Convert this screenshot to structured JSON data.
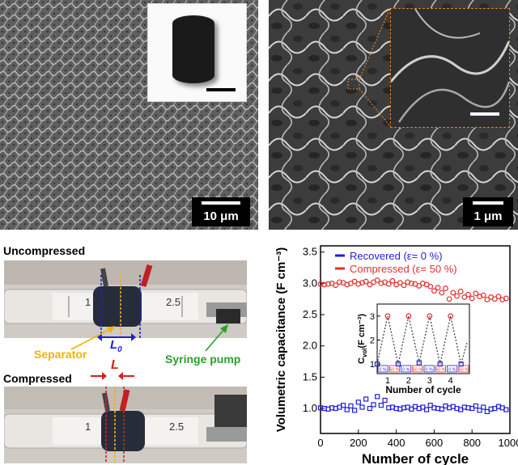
{
  "panel_a": {
    "scale_label": "10 μm",
    "inset_scale": ""
  },
  "panel_b": {
    "scale_label": "1 μm"
  },
  "panel_c": {
    "uncompressed_label": "Uncompressed",
    "compressed_label": "Compressed",
    "separator_label": "Separator",
    "syringe_label": "Syringe pump",
    "L0_label": "L",
    "L0_sub": "0",
    "L_label": "L",
    "syringe_marks": [
      "1",
      "2.5"
    ]
  },
  "colors": {
    "recovered": "#1f1fd6",
    "compressed": "#e03030",
    "separator": "#f0b400",
    "syringe": "#2aa02a"
  },
  "chart_data": {
    "type": "scatter",
    "xlabel": "Number of cycle",
    "ylabel": "Volumetric capacitance  (F cm⁻³)",
    "xlim": [
      0,
      1000
    ],
    "ylim": [
      0.6,
      3.6
    ],
    "xticks": [
      0,
      200,
      400,
      600,
      800,
      1000
    ],
    "yticks": [
      1.0,
      1.5,
      2.0,
      2.5,
      3.0,
      3.5
    ],
    "legend_position": "top",
    "series": [
      {
        "name": "Recovered (ε= 0 %)",
        "marker": "square",
        "x": [
          0,
          20,
          40,
          60,
          80,
          100,
          120,
          140,
          160,
          180,
          200,
          220,
          240,
          260,
          280,
          300,
          320,
          340,
          360,
          380,
          400,
          420,
          440,
          460,
          480,
          500,
          520,
          540,
          560,
          580,
          600,
          620,
          640,
          660,
          680,
          700,
          720,
          740,
          760,
          780,
          800,
          820,
          840,
          860,
          880,
          900,
          920,
          940,
          960,
          980
        ],
        "y": [
          1.01,
          1.0,
          0.99,
          1.01,
          1.0,
          1.02,
          1.05,
          0.98,
          1.04,
          0.97,
          1.1,
          1.02,
          1.15,
          1.0,
          1.06,
          1.19,
          1.05,
          1.13,
          1.01,
          1.02,
          1.0,
          0.99,
          1.01,
          1.02,
          0.99,
          1.03,
          1.0,
          1.02,
          0.98,
          1.05,
          1.01,
          1.0,
          0.99,
          1.04,
          1.01,
          1.03,
          1.0,
          0.98,
          1.02,
          1.01,
          1.0,
          1.04,
          0.97,
          1.02,
          0.95,
          0.99,
          1.0,
          1.03,
          1.01,
          0.98
        ]
      },
      {
        "name": "Compressed (ε= 50 %)",
        "marker": "circle",
        "x": [
          0,
          20,
          40,
          60,
          80,
          100,
          120,
          140,
          160,
          180,
          200,
          220,
          240,
          260,
          280,
          300,
          320,
          340,
          360,
          380,
          400,
          420,
          440,
          460,
          480,
          500,
          520,
          540,
          560,
          580,
          600,
          620,
          640,
          660,
          680,
          700,
          720,
          740,
          760,
          780,
          800,
          820,
          840,
          860,
          880,
          900,
          920,
          940,
          960,
          980
        ],
        "y": [
          2.99,
          2.98,
          2.99,
          3.0,
          2.97,
          3.02,
          3.01,
          2.98,
          3.0,
          3.03,
          2.99,
          3.01,
          3.03,
          2.98,
          3.02,
          3.05,
          3.0,
          3.02,
          2.99,
          3.04,
          2.98,
          3.01,
          2.97,
          3.02,
          3.0,
          2.99,
          2.96,
          3.0,
          2.98,
          2.95,
          2.88,
          2.93,
          2.85,
          2.92,
          2.75,
          2.85,
          2.8,
          2.87,
          2.78,
          2.82,
          2.76,
          2.84,
          2.79,
          2.81,
          2.74,
          2.78,
          2.75,
          2.79,
          2.74,
          2.76
        ]
      }
    ],
    "inset": {
      "xlabel": "Number of cycle",
      "ylabel": "C",
      "ylabel_sub": "vol",
      "ylabel_unit": "(F cm⁻³)",
      "yticks": [
        1,
        2,
        3
      ],
      "xticks": [
        1,
        2,
        3,
        4
      ],
      "ylim": [
        0.6,
        3.5
      ],
      "x": [
        0.0,
        0.5,
        1.0,
        1.5,
        2.0,
        2.5,
        3.0,
        3.5,
        4.0,
        4.3
      ],
      "y": [
        1.0,
        3.0,
        1.0,
        3.0,
        1.05,
        3.0,
        1.0,
        3.0,
        1.0,
        1.95
      ],
      "strain_labels": [
        "0 %",
        "50 %",
        "0 %",
        "50 %",
        "0 %",
        "50 %",
        "0 %",
        "50 %"
      ]
    }
  }
}
